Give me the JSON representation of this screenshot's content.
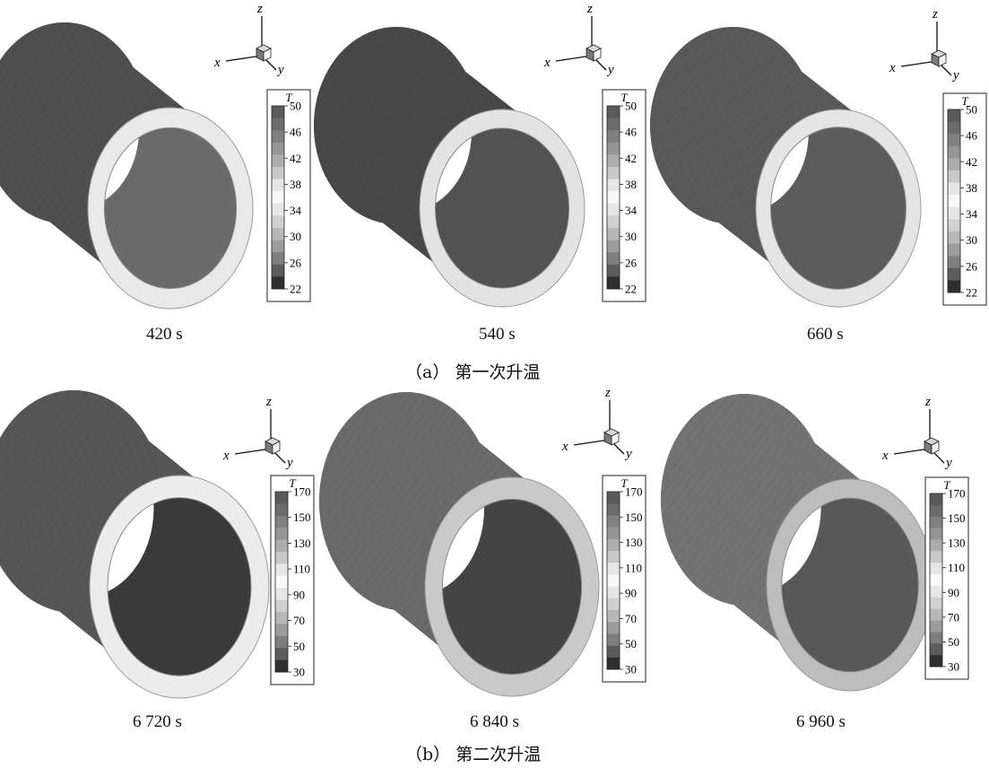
{
  "colorbar_title": "T",
  "axes": {
    "x": "x",
    "y": "y",
    "z": "z"
  },
  "group_a": {
    "caption": "（a） 第一次升温",
    "ticks": [
      "50",
      "46",
      "42",
      "38",
      "34",
      "30",
      "26",
      "22"
    ],
    "panels": [
      {
        "time": "420 s"
      },
      {
        "time": "540 s"
      },
      {
        "time": "660 s"
      }
    ]
  },
  "group_b": {
    "caption": "（b） 第二次升温",
    "ticks": [
      "170",
      "150",
      "130",
      "110",
      "90",
      "70",
      "50",
      "30"
    ],
    "panels": [
      {
        "time": "6 720 s"
      },
      {
        "time": "6 840 s"
      },
      {
        "time": "6 960 s"
      }
    ]
  },
  "colors": {
    "shell": [
      "#4f4f4f",
      "#484848",
      "#595959",
      "#565656",
      "#6a6a6a",
      "#737373"
    ],
    "inner": [
      "#6a6a6a",
      "#525252",
      "#5c5c5c",
      "#3a3a3a",
      "#444444",
      "#585858"
    ],
    "ring": [
      "#e9e9e9",
      "#e3e3e3",
      "#e5e5e5",
      "#ececec",
      "#c9c9c9",
      "#bdbdbd"
    ]
  }
}
